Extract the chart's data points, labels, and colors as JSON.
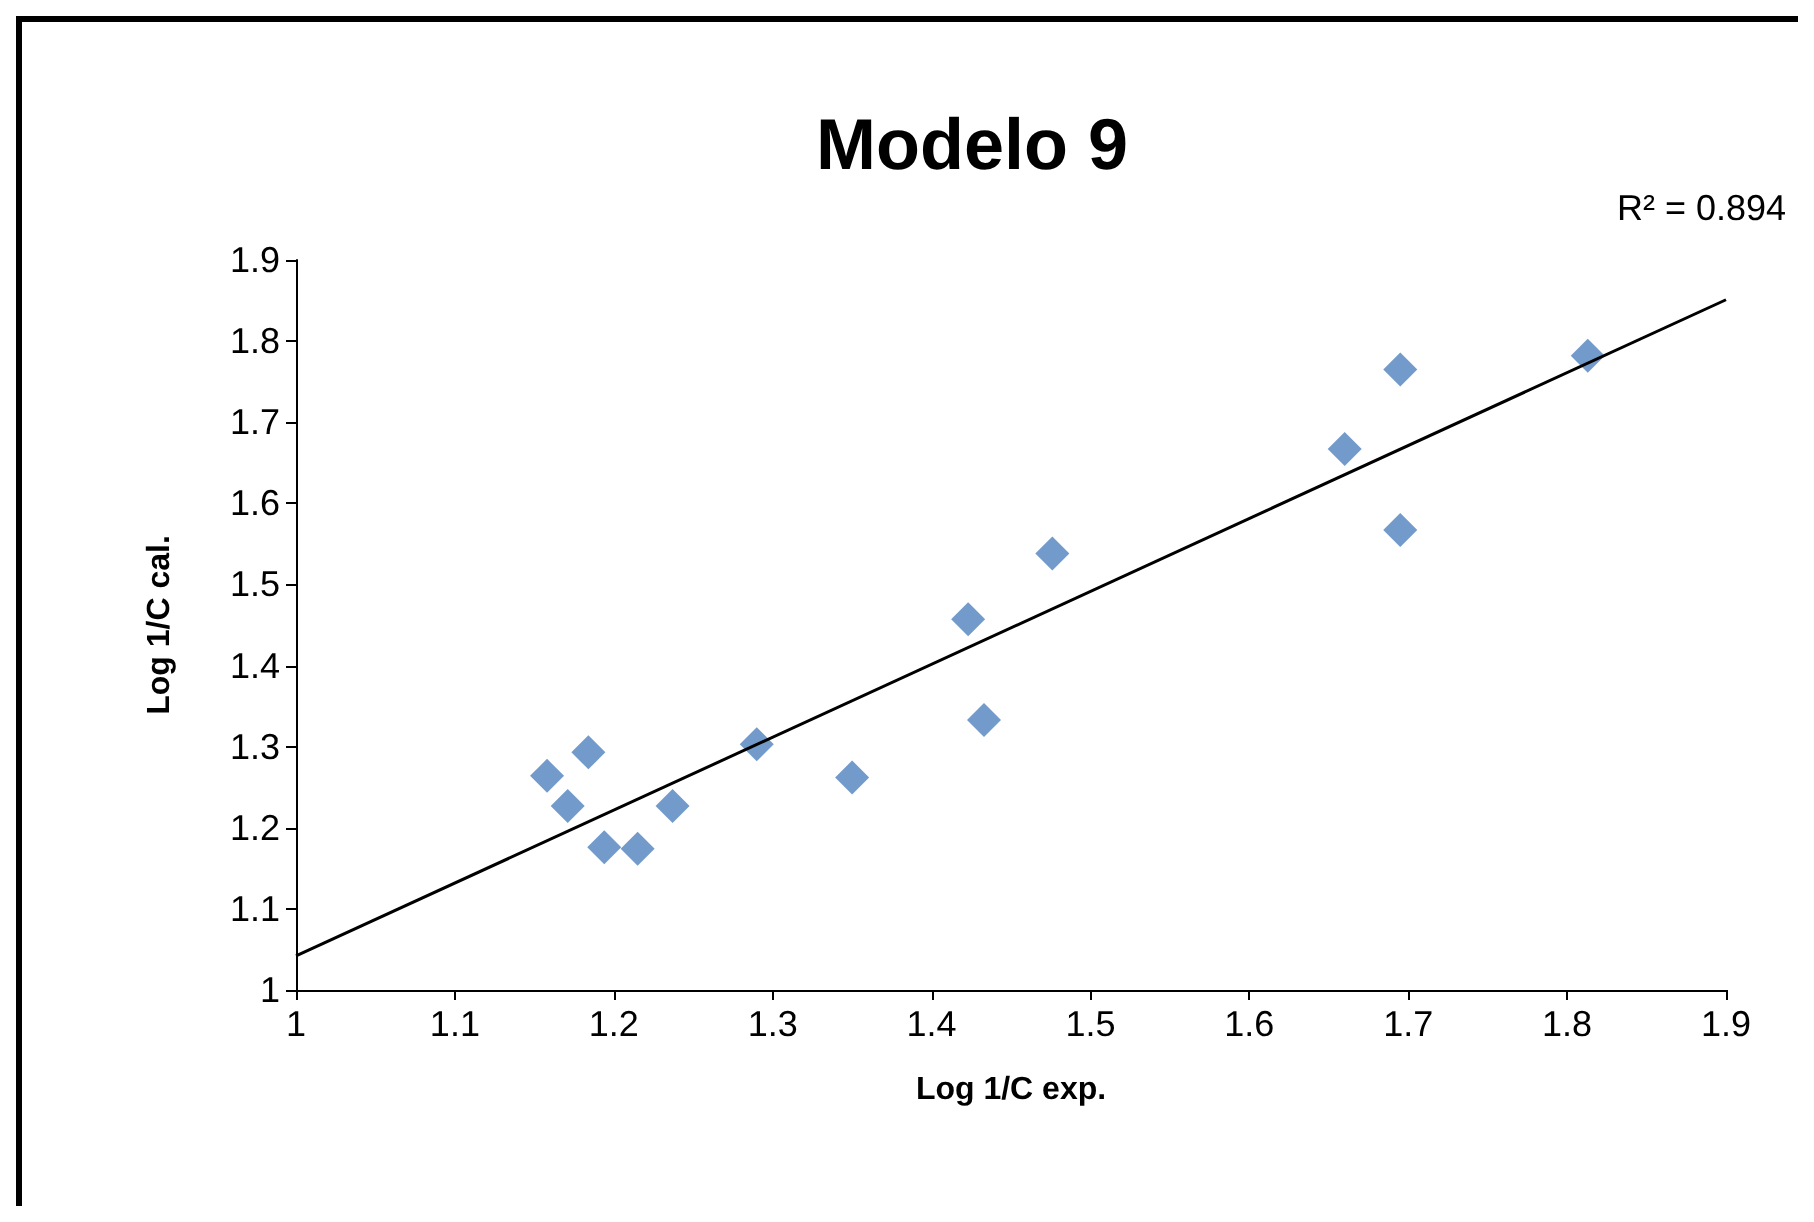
{
  "chart_data": {
    "type": "scatter",
    "title": "Modelo 9",
    "xlabel": "Log 1/C exp.",
    "ylabel": "Log 1/C cal.",
    "marker": "diamond",
    "xlim": [
      1,
      1.9
    ],
    "ylim": [
      1,
      1.9
    ],
    "xticks": [
      1,
      1.1,
      1.2,
      1.3,
      1.4,
      1.5,
      1.6,
      1.7,
      1.8,
      1.9
    ],
    "yticks": [
      1,
      1.1,
      1.2,
      1.3,
      1.4,
      1.5,
      1.6,
      1.7,
      1.8,
      1.9
    ],
    "annotations": [
      "R² = 0.894"
    ],
    "series": [
      {
        "color": "#4f81bd",
        "x": [
          1.158,
          1.171,
          1.184,
          1.194,
          1.215,
          1.237,
          1.29,
          1.35,
          1.423,
          1.433,
          1.476,
          1.66,
          1.695,
          1.695,
          1.813
        ],
        "values": [
          1.264,
          1.227,
          1.293,
          1.176,
          1.174,
          1.227,
          1.303,
          1.262,
          1.457,
          1.333,
          1.538,
          1.667,
          1.765,
          1.567,
          1.782
        ]
      },
      {
        "type": "line",
        "color": "#000000",
        "marker": "none",
        "x": [
          1,
          1.9
        ],
        "values": [
          1.042,
          1.851
        ]
      }
    ]
  }
}
